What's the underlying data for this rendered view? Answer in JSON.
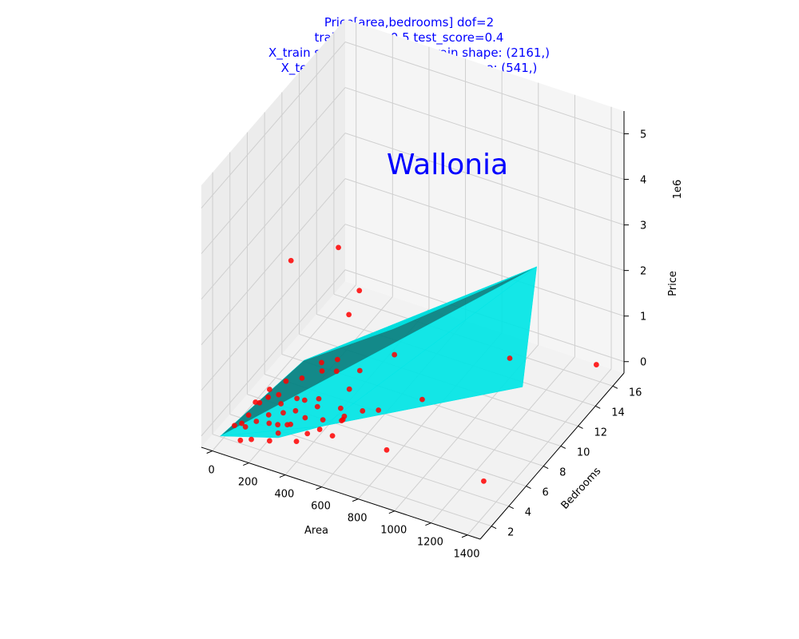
{
  "chart_data": {
    "type": "scatter",
    "title_lines": [
      "Price[area,bedrooms]  dof=2",
      "train_score=0.5  test_score=0.4",
      "X_train shape: (2161, 2)  y_train shape: (2161,)",
      "X_test shape: (541, 2)  y_test shape: (541,)"
    ],
    "annotation": "Wallonia",
    "xlabel": "Area",
    "ylabel": "Bedrooms",
    "zlabel": "Price",
    "z_offset_label": "1e6",
    "x_ticks": [
      "0",
      "200",
      "400",
      "600",
      "800",
      "1000",
      "1200",
      "1400"
    ],
    "y_ticks": [
      "2",
      "4",
      "6",
      "8",
      "10",
      "12",
      "14",
      "16"
    ],
    "z_ticks": [
      "0",
      "1",
      "2",
      "3",
      "4",
      "5"
    ],
    "xlim": [
      -60,
      1470
    ],
    "ylim": [
      0.7,
      17.3
    ],
    "zlim": [
      -0.25,
      5.5
    ],
    "grid": true,
    "colors": {
      "points": "#ff0000",
      "surface": "#00e5e5",
      "surface_dark": "#008080",
      "text": "#0000ff"
    },
    "series": [
      {
        "kind": "scatter",
        "points": [
          [
            1000,
            14,
            0.18
          ],
          [
            1380,
            16,
            0.1
          ],
          [
            1380,
            3,
            0.4
          ],
          [
            800,
            4,
            0.1
          ],
          [
            600,
            3,
            0.7
          ],
          [
            300,
            2,
            0.25
          ],
          [
            250,
            3,
            0.15
          ],
          [
            450,
            7,
            1.95
          ],
          [
            650,
            4,
            3.4
          ],
          [
            250,
            10,
            2.5
          ],
          [
            180,
            6,
            3.0
          ],
          [
            900,
            6,
            0.9
          ],
          [
            700,
            7,
            1.4
          ],
          [
            500,
            6,
            0.6
          ],
          [
            350,
            6,
            0.8
          ],
          [
            300,
            4,
            0.3
          ],
          [
            200,
            5,
            0.6
          ],
          [
            150,
            3,
            0.5
          ],
          [
            100,
            2,
            0.2
          ],
          [
            150,
            4,
            0.4
          ],
          [
            250,
            2,
            0.4
          ],
          [
            400,
            3,
            0.5
          ],
          [
            350,
            2,
            0.5
          ],
          [
            450,
            4,
            0.3
          ],
          [
            550,
            3,
            0.3
          ],
          [
            500,
            5,
            0.4
          ],
          [
            350,
            4,
            0.6
          ],
          [
            200,
            3,
            0.3
          ],
          [
            120,
            2,
            0.15
          ],
          [
            180,
            2,
            0.35
          ],
          [
            220,
            4,
            0.35
          ],
          [
            280,
            3,
            0.45
          ],
          [
            320,
            3,
            0.25
          ],
          [
            380,
            5,
            0.45
          ],
          [
            420,
            4,
            0.55
          ],
          [
            480,
            3,
            0.35
          ],
          [
            520,
            5,
            0.25
          ],
          [
            560,
            4,
            0.45
          ],
          [
            620,
            5,
            0.5
          ],
          [
            660,
            6,
            0.35
          ],
          [
            240,
            6,
            0.5
          ],
          [
            300,
            7,
            0.7
          ],
          [
            340,
            8,
            0.6
          ],
          [
            260,
            5,
            0.3
          ],
          [
            160,
            5,
            0.25
          ],
          [
            140,
            1,
            0.1
          ],
          [
            90,
            3,
            0.15
          ],
          [
            60,
            2,
            0.1
          ],
          [
            80,
            4,
            0.2
          ],
          [
            110,
            5,
            0.3
          ],
          [
            200,
            1,
            0.2
          ],
          [
            300,
            1,
            0.3
          ],
          [
            400,
            2,
            0.2
          ],
          [
            460,
            2,
            0.45
          ],
          [
            430,
            6,
            0.9
          ],
          [
            510,
            7,
            0.8
          ]
        ]
      },
      {
        "kind": "surface",
        "triangles": [
          [
            [
              30,
              1,
              0.05
            ],
            [
              500,
              3,
              0.45
            ],
            [
              1100,
              15,
              2.1
            ]
          ],
          [
            [
              30,
              1,
              0.05
            ],
            [
              1100,
              15,
              2.1
            ],
            [
              250,
              6,
              0.9
            ]
          ],
          [
            [
              500,
              3,
              0.45
            ],
            [
              1450,
              6,
              1.9
            ],
            [
              1100,
              15,
              2.1
            ]
          ],
          [
            [
              30,
              1,
              0.05
            ],
            [
              300,
              2,
              0.15
            ],
            [
              500,
              3,
              0.45
            ]
          ],
          [
            [
              250,
              6,
              0.9
            ],
            [
              1100,
              15,
              2.1
            ],
            [
              600,
              9,
              1.4
            ]
          ]
        ]
      }
    ]
  }
}
